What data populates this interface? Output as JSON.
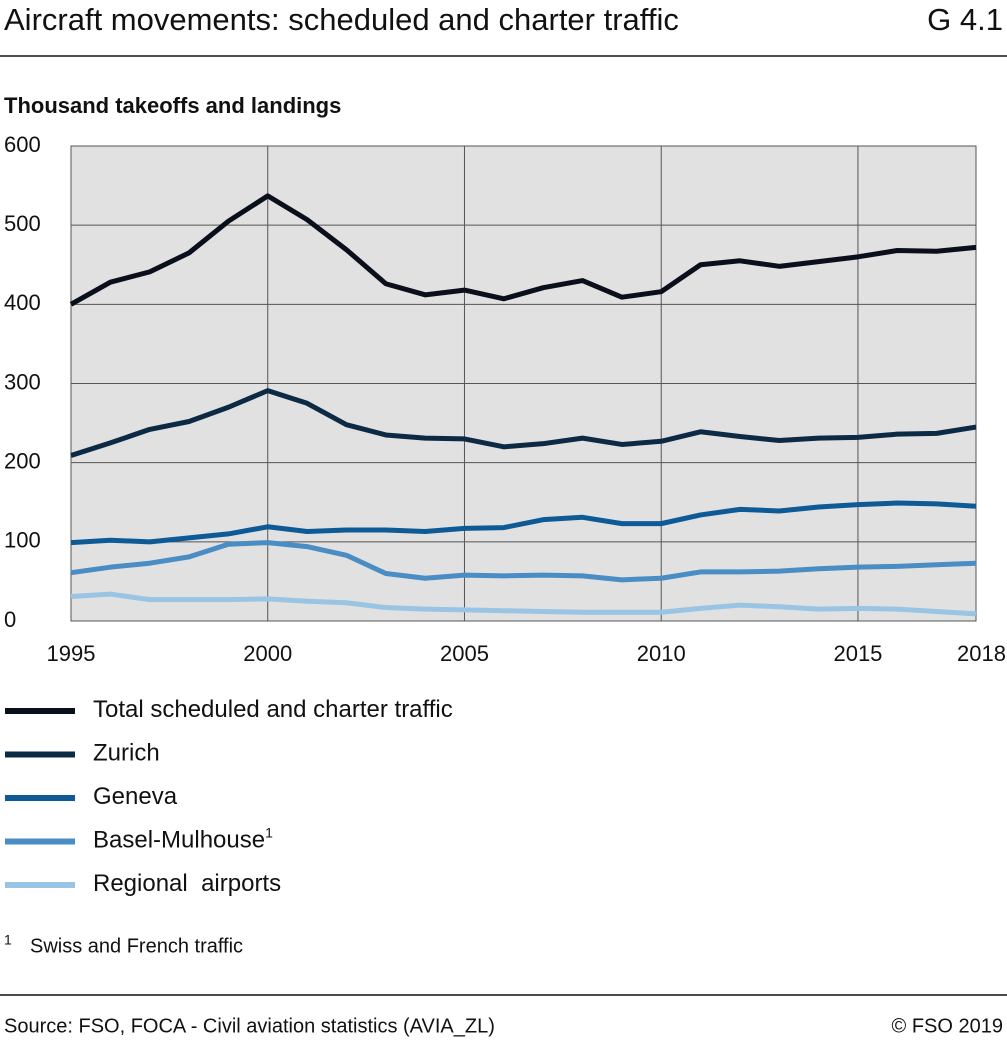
{
  "chart_data": {
    "type": "line",
    "title": "Aircraft movements: scheduled and charter traffic",
    "code": "G 4.1",
    "subtitle": "Thousand takeoffs and landings",
    "x": [
      1995,
      1996,
      1997,
      1998,
      1999,
      2000,
      2001,
      2002,
      2003,
      2004,
      2005,
      2006,
      2007,
      2008,
      2009,
      2010,
      2011,
      2012,
      2013,
      2014,
      2015,
      2016,
      2017,
      2018
    ],
    "xlim": [
      1995,
      2018
    ],
    "xticks": [
      1995,
      2000,
      2005,
      2010,
      2015,
      2018
    ],
    "ylim": [
      0,
      600
    ],
    "yticks": [
      0,
      100,
      200,
      300,
      400,
      500,
      600
    ],
    "grid": true,
    "series": [
      {
        "name": "Total scheduled and charter traffic",
        "color": "#0a0f1c",
        "values": [
          400,
          428,
          441,
          465,
          505,
          537,
          507,
          469,
          426,
          412,
          418,
          407,
          421,
          430,
          409,
          416,
          450,
          455,
          448,
          454,
          460,
          468,
          467,
          472
        ]
      },
      {
        "name": "Zurich",
        "color": "#0d2a45",
        "values": [
          209,
          225,
          242,
          252,
          270,
          291,
          275,
          248,
          235,
          231,
          230,
          220,
          224,
          231,
          223,
          227,
          239,
          233,
          228,
          231,
          232,
          236,
          237,
          245
        ]
      },
      {
        "name": "Geneva",
        "color": "#0e5a96",
        "values": [
          99,
          102,
          100,
          105,
          110,
          119,
          113,
          115,
          115,
          113,
          117,
          118,
          128,
          131,
          123,
          123,
          134,
          141,
          139,
          144,
          147,
          149,
          148,
          145
        ]
      },
      {
        "name": "Basel-Mulhouse",
        "color": "#4a8cc4",
        "note": "1",
        "values": [
          61,
          68,
          73,
          81,
          97,
          99,
          94,
          83,
          60,
          54,
          58,
          57,
          58,
          57,
          52,
          54,
          62,
          62,
          63,
          66,
          68,
          69,
          71,
          73
        ]
      },
      {
        "name": "Regional  airports",
        "color": "#9ac4e4",
        "values": [
          31,
          34,
          27,
          27,
          27,
          28,
          25,
          23,
          17,
          15,
          14,
          13,
          12,
          11,
          11,
          11,
          16,
          20,
          18,
          15,
          16,
          15,
          12,
          9
        ]
      }
    ],
    "footnote": {
      "marker": "1",
      "text": "Swiss and French traffic"
    },
    "source": "Source: FSO, FOCA - Civil aviation statistics (AVIA_ZL)",
    "copyright": "© FSO 2019"
  }
}
